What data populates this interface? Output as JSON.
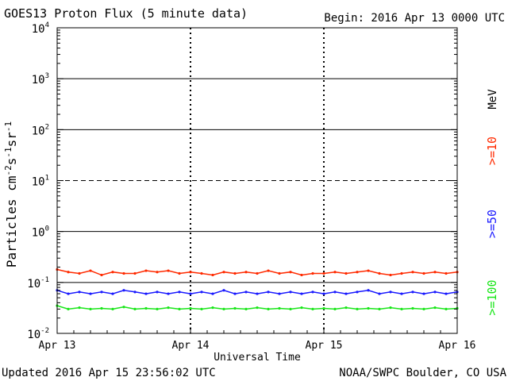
{
  "header": {
    "title": "GOES13 Proton Flux (5 minute data)",
    "begin": "Begin: 2016 Apr 13 0000 UTC"
  },
  "footer": {
    "updated": "Updated 2016 Apr 15 23:56:02 UTC",
    "credit": "NOAA/SWPC Boulder, CO USA"
  },
  "chart_data": {
    "type": "line",
    "title": "GOES13 Proton Flux (5 minute data)",
    "xlabel": "Universal Time",
    "ylabel": "Particles cm-2 s-1 sr-1",
    "yscale": "log",
    "ylim": [
      0.01,
      10000
    ],
    "xlim_hours": [
      0,
      72
    ],
    "x_ticks": [
      {
        "label": "Apr 13",
        "hour": 0
      },
      {
        "label": "Apr 14",
        "hour": 24
      },
      {
        "label": "Apr 15",
        "hour": 48
      },
      {
        "label": "Apr 16",
        "hour": 72
      }
    ],
    "y_ticks": [
      {
        "mant": "10",
        "exp": "-2",
        "value": 0.01
      },
      {
        "mant": "10",
        "exp": "-1",
        "value": 0.1
      },
      {
        "mant": "10",
        "exp": "0",
        "value": 1
      },
      {
        "mant": "10",
        "exp": "1",
        "value": 10
      },
      {
        "mant": "10",
        "exp": "2",
        "value": 100
      },
      {
        "mant": "10",
        "exp": "3",
        "value": 1000
      },
      {
        "mant": "10",
        "exp": "4",
        "value": 10000
      }
    ],
    "reference_lines": [
      {
        "value": 10,
        "style": "dashed"
      }
    ],
    "grid": "solid horizontal lines at each decade; dashed vertical at day boundaries",
    "legend_placement": "right, vertical",
    "legend_unit": "MeV",
    "series": [
      {
        "name": ">=10",
        "color": "#ff2a00",
        "x": [
          0,
          2,
          4,
          6,
          8,
          10,
          12,
          14,
          16,
          18,
          20,
          22,
          24,
          26,
          28,
          30,
          32,
          34,
          36,
          38,
          40,
          42,
          44,
          46,
          48,
          50,
          52,
          54,
          56,
          58,
          60,
          62,
          64,
          66,
          68,
          70,
          72
        ],
        "values": [
          0.18,
          0.16,
          0.15,
          0.17,
          0.14,
          0.16,
          0.15,
          0.15,
          0.17,
          0.16,
          0.17,
          0.15,
          0.16,
          0.15,
          0.14,
          0.16,
          0.15,
          0.16,
          0.15,
          0.17,
          0.15,
          0.16,
          0.14,
          0.15,
          0.15,
          0.16,
          0.15,
          0.16,
          0.17,
          0.15,
          0.14,
          0.15,
          0.16,
          0.15,
          0.16,
          0.15,
          0.16
        ]
      },
      {
        "name": ">=50",
        "color": "#1a1aff",
        "x": [
          0,
          2,
          4,
          6,
          8,
          10,
          12,
          14,
          16,
          18,
          20,
          22,
          24,
          26,
          28,
          30,
          32,
          34,
          36,
          38,
          40,
          42,
          44,
          46,
          48,
          50,
          52,
          54,
          56,
          58,
          60,
          62,
          64,
          66,
          68,
          70,
          72
        ],
        "values": [
          0.07,
          0.06,
          0.065,
          0.06,
          0.065,
          0.06,
          0.07,
          0.065,
          0.06,
          0.065,
          0.06,
          0.065,
          0.06,
          0.065,
          0.06,
          0.07,
          0.06,
          0.065,
          0.06,
          0.065,
          0.06,
          0.065,
          0.06,
          0.065,
          0.06,
          0.065,
          0.06,
          0.065,
          0.07,
          0.06,
          0.065,
          0.06,
          0.065,
          0.06,
          0.065,
          0.06,
          0.065
        ]
      },
      {
        "name": ">=100",
        "color": "#19e619",
        "x": [
          0,
          2,
          4,
          6,
          8,
          10,
          12,
          14,
          16,
          18,
          20,
          22,
          24,
          26,
          28,
          30,
          32,
          34,
          36,
          38,
          40,
          42,
          44,
          46,
          48,
          50,
          52,
          54,
          56,
          58,
          60,
          62,
          64,
          66,
          68,
          70,
          72
        ],
        "values": [
          0.035,
          0.03,
          0.032,
          0.03,
          0.031,
          0.03,
          0.033,
          0.03,
          0.031,
          0.03,
          0.032,
          0.03,
          0.031,
          0.03,
          0.032,
          0.03,
          0.031,
          0.03,
          0.032,
          0.03,
          0.031,
          0.03,
          0.032,
          0.03,
          0.031,
          0.03,
          0.032,
          0.03,
          0.031,
          0.03,
          0.032,
          0.03,
          0.031,
          0.03,
          0.032,
          0.03,
          0.031
        ]
      }
    ]
  }
}
